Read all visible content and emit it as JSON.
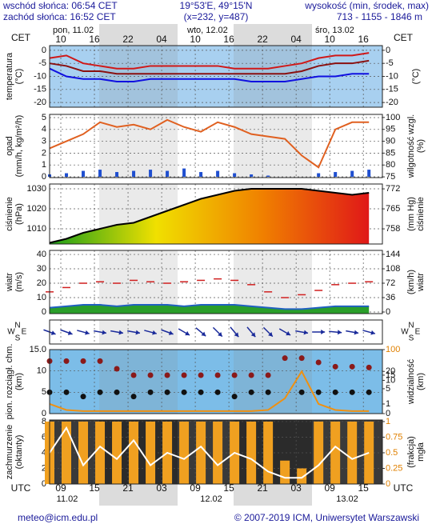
{
  "header": {
    "sunrise": "wschód słońca: 06:54 CET",
    "sunset": "zachód słońca: 16:52 CET",
    "coords": "19°53'E, 49°15'N",
    "grid_point": "(x=232, y=487)",
    "altitude_title": "wysokość (min, środek, max)",
    "altitude": "713 - 1155 - 1846 m"
  },
  "footer": {
    "email": "meteo@icm.edu.pl",
    "copyright": "© 2007-2019 ICM, Uniwersytet Warszawski"
  },
  "chart_data": {
    "type": "meteogram",
    "tz_top": "CET",
    "tz_bottom": "UTC",
    "days_top": [
      "pon, 11.02",
      "wto, 12.02",
      "śro, 13.02"
    ],
    "days_bottom": [
      "11.02",
      "12.02",
      "13.02"
    ],
    "xlim": [
      7,
      66.4
    ],
    "xticks": [
      {
        "value": 9,
        "label": "10"
      },
      {
        "value": 15,
        "label": "16"
      },
      {
        "value": 21,
        "label": "22"
      },
      {
        "value": 27,
        "label": "04"
      },
      {
        "value": 33,
        "label": "10"
      },
      {
        "value": 39,
        "label": "16"
      },
      {
        "value": 45,
        "label": "22"
      },
      {
        "value": 51,
        "label": "04"
      },
      {
        "value": 57,
        "label": "10"
      },
      {
        "value": 63,
        "label": "16"
      }
    ],
    "xticks_utc": [
      {
        "value": 9,
        "label": "09"
      },
      {
        "value": 15,
        "label": "15"
      },
      {
        "value": 21,
        "label": "21"
      },
      {
        "value": 27,
        "label": "03"
      },
      {
        "value": 33,
        "label": "09"
      },
      {
        "value": 39,
        "label": "15"
      },
      {
        "value": 45,
        "label": "21"
      },
      {
        "value": 51,
        "label": "03"
      },
      {
        "value": 57,
        "label": "09"
      },
      {
        "value": 63,
        "label": "15"
      }
    ],
    "x": [
      7,
      10,
      13,
      16,
      19,
      22,
      25,
      28,
      31,
      34,
      37,
      40,
      43,
      46,
      49,
      52,
      55,
      58,
      61,
      64
    ],
    "panels": [
      {
        "type": "line",
        "ylabel": [
          "temperatura",
          "(°C)"
        ],
        "y2label": [
          "(°C)"
        ],
        "grid": true,
        "ylim": [
          -21.8,
          1.8
        ],
        "yticks": [
          0,
          -5,
          -10,
          -15,
          -20
        ],
        "y2lim": [
          -21.8,
          1.8
        ],
        "y2ticks": [
          0,
          -5,
          -10,
          -15,
          -20
        ],
        "series": [
          {
            "kind": "line",
            "color": "#d01818",
            "values": [
              -3,
              -2,
              -5,
              -6,
              -7,
              -7,
              -6,
              -6,
              -6,
              -6,
              -6,
              -7,
              -7,
              -7,
              -6,
              -5,
              -3,
              -2,
              -2,
              -1
            ]
          },
          {
            "kind": "line",
            "color": "#8a1010",
            "values": [
              -5,
              -6,
              -8,
              -8,
              -9,
              -9,
              -9,
              -9,
              -9,
              -9,
              -9,
              -9,
              -9,
              -9,
              -9,
              -8,
              -6,
              -5,
              -5,
              -4
            ]
          },
          {
            "kind": "line",
            "color": "#1010e0",
            "values": [
              -7,
              -10,
              -11,
              -11,
              -12,
              -12,
              -11,
              -11,
              -11,
              -11,
              -11,
              -11,
              -12,
              -12,
              -12,
              -11,
              -10,
              -10,
              -9,
              -9
            ]
          }
        ]
      },
      {
        "type": "bar",
        "ylabel": [
          "opad",
          "(mm/h, kg/m²/h)"
        ],
        "y2label": [
          "wilgotność wzgl.",
          "(%)"
        ],
        "grid": true,
        "ylim": [
          -0.07,
          5.27
        ],
        "yticks": [
          0,
          1,
          2,
          3,
          4,
          5
        ],
        "y2lim": [
          74.7,
          101.3
        ],
        "y2ticks": [
          75,
          80,
          85,
          90,
          95,
          100
        ],
        "series": [
          {
            "kind": "bar",
            "color": "#1f4fd0",
            "values": [
              0.2,
              0.3,
              0.5,
              0.6,
              0.4,
              0.5,
              0.6,
              0.5,
              0.7,
              0.4,
              0.5,
              0.3,
              0.2,
              0.1,
              0,
              0,
              0.3,
              0.4,
              0.5,
              0.6
            ]
          },
          {
            "kind": "line",
            "axis": "y2",
            "color": "#e06020",
            "values": [
              87,
              90,
              93,
              98,
              96,
              97,
              95,
              99,
              96,
              94,
              98,
              96,
              93,
              92,
              91,
              84,
              79,
              95,
              98,
              98
            ]
          }
        ]
      },
      {
        "type": "area",
        "ylabel": [
          "ciśnienie",
          "(hPa)"
        ],
        "y2label": [
          "(mm Hg)",
          "ciśnienie"
        ],
        "grid": true,
        "ylim": [
          1002.4,
          1032.4
        ],
        "yticks": [
          1010,
          1020,
          1030
        ],
        "y2lim": [
          752.7,
          773.7
        ],
        "y2ticks": [
          758,
          765,
          772
        ],
        "series": [
          {
            "kind": "area",
            "color": "#000000",
            "gradient": [
              "#1a9e1a",
              "#f0e000",
              "#f08000",
              "#e01818"
            ],
            "values": [
              1003,
              1005,
              1008,
              1010,
              1012,
              1013,
              1016,
              1019,
              1022,
              1025,
              1027,
              1029,
              1030,
              1030,
              1030,
              1030,
              1029,
              1028,
              1027,
              1028
            ]
          }
        ]
      },
      {
        "type": "area",
        "ylabel": [
          "wiatr",
          "(m/s)"
        ],
        "y2label": [
          "(km/h)",
          "wiatr"
        ],
        "grid": true,
        "ylim": [
          -1.1,
          42.8
        ],
        "yticks": [
          0,
          10,
          20,
          30,
          40
        ],
        "y2lim": [
          -4,
          154
        ],
        "y2ticks": [
          0,
          36,
          72,
          108,
          144
        ],
        "series": [
          {
            "kind": "area",
            "color": "#2060c0",
            "fill": "#2a9e2a",
            "values": [
              3,
              4,
              5,
              5,
              4,
              5,
              5,
              5,
              4,
              5,
              5,
              5,
              4,
              3,
              2,
              2,
              3,
              4,
              4,
              4
            ]
          },
          {
            "kind": "dash",
            "color": "#d02020",
            "values": [
              14,
              17,
              20,
              21,
              20,
              22,
              21,
              20,
              21,
              22,
              23,
              22,
              19,
              14,
              10,
              12,
              15,
              19,
              20,
              21
            ]
          }
        ]
      },
      {
        "type": "arrows",
        "compass": [
          "N",
          "W",
          "E",
          "S"
        ],
        "series": [
          {
            "kind": "arrows",
            "color": "#1a2a9a",
            "values": [
              290,
              290,
              285,
              280,
              280,
              280,
              285,
              290,
              300,
              310,
              315,
              320,
              320,
              315,
              300,
              280,
              270,
              275,
              280,
              285
            ]
          }
        ]
      },
      {
        "type": "scatter",
        "ylabel": [
          "pion. rozciągł. chm.",
          "(km)"
        ],
        "y2label": [
          "widzialność",
          "(km)"
        ],
        "grid": true,
        "ylim": [
          0,
          15
        ],
        "yticks": [
          0,
          5,
          10,
          {
            "value": 15,
            "label": "15.0"
          }
        ],
        "y2lim": [
          0,
          100
        ],
        "y2scale": "log1p",
        "y2ticks": [
          0,
          1,
          5,
          10,
          15,
          20,
          100
        ],
        "series": [
          {
            "kind": "dots",
            "color": "#8a1a1a",
            "values": [
              12.3,
              12.3,
              12.3,
              12.3,
              10.5,
              9,
              9,
              9,
              9,
              9,
              9,
              9,
              9,
              9,
              13,
              13,
              12,
              11,
              11,
              10.8
            ]
          },
          {
            "kind": "dots",
            "color": "#111111",
            "values": [
              5,
              5,
              4,
              5,
              5,
              4,
              5,
              5,
              5,
              5,
              5,
              4,
              5,
              5,
              null,
              5,
              5,
              5,
              5,
              5
            ]
          },
          {
            "kind": "line",
            "axis": "y2",
            "color": "#f09010",
            "values": [
              1,
              0.3,
              0.2,
              0.2,
              0.2,
              0.2,
              0.2,
              0.2,
              0.2,
              0.2,
              0.2,
              0.2,
              0.2,
              0.3,
              2,
              20,
              1,
              0.3,
              0.2,
              0.2
            ]
          }
        ]
      },
      {
        "type": "bar",
        "ylabel": [
          "zachmurzenie",
          "(oktanty)"
        ],
        "y2label": [
          "(frakcja)",
          "mgła"
        ],
        "grid": true,
        "ylim": [
          0,
          8.2
        ],
        "yticks": [
          0,
          2,
          4,
          6,
          8
        ],
        "y2lim": [
          0,
          1.025
        ],
        "y2ticks": [
          0,
          0.25,
          0.5,
          0.75,
          1
        ],
        "series": [
          {
            "kind": "bar",
            "color": "#f0a020",
            "values": [
              8,
              8,
              8,
              8,
              8,
              8,
              8,
              8,
              8,
              8,
              8,
              8,
              8,
              8,
              3,
              2,
              8,
              8,
              8,
              8
            ]
          },
          {
            "kind": "line",
            "axis": "y2",
            "color": "#ffffff",
            "values": [
              0.5,
              0.9,
              0.3,
              0.6,
              0.4,
              0.7,
              0.3,
              0.5,
              0.4,
              0.6,
              0.3,
              0.5,
              0.4,
              0.2,
              0.1,
              0.1,
              0.3,
              0.6,
              0.4,
              0.5
            ]
          }
        ]
      }
    ]
  }
}
